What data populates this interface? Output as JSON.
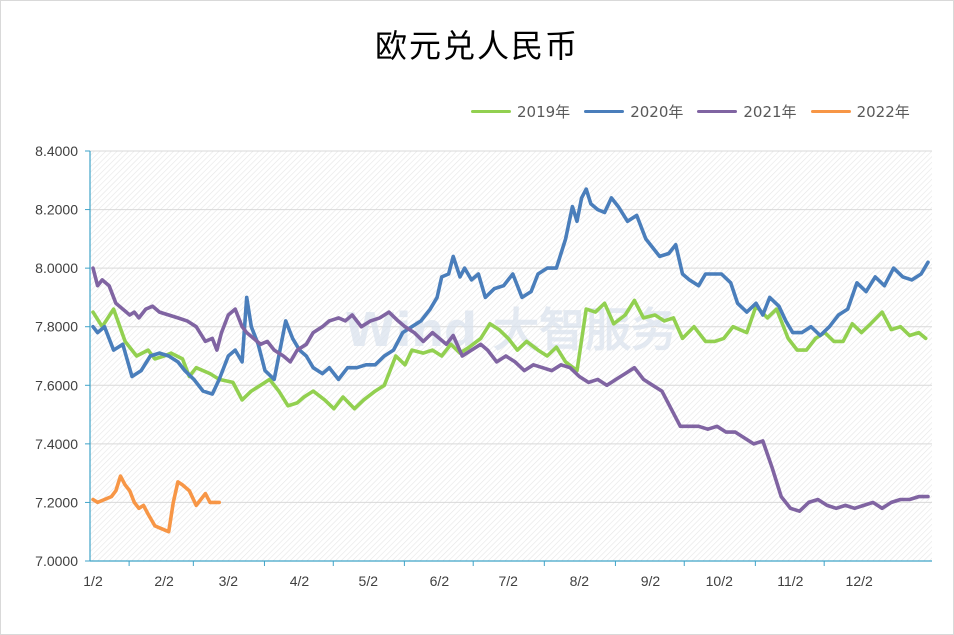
{
  "chart_data": {
    "type": "line",
    "title": "欧元兑人民币",
    "xlabel": "",
    "ylabel": "",
    "ylim": [
      7.0,
      8.4
    ],
    "yticks": [
      "7.0000",
      "7.2000",
      "7.4000",
      "7.6000",
      "7.8000",
      "8.0000",
      "8.2000",
      "8.4000"
    ],
    "xticks": [
      "1/2",
      "2/2",
      "3/2",
      "4/2",
      "5/2",
      "6/2",
      "7/2",
      "8/2",
      "9/2",
      "10/2",
      "11/2",
      "12/2"
    ],
    "x_unit": "day_of_year",
    "x_range": [
      1,
      365
    ],
    "grid": true,
    "legend_position": "top-right",
    "watermark": "Wind 大智服务",
    "series": [
      {
        "name": "2019年",
        "color": "#92d050",
        "x": [
          1,
          5,
          10,
          15,
          20,
          25,
          28,
          32,
          35,
          40,
          43,
          46,
          52,
          56,
          62,
          66,
          70,
          74,
          78,
          82,
          86,
          90,
          93,
          97,
          102,
          106,
          110,
          115,
          119,
          124,
          128,
          133,
          137,
          140,
          145,
          149,
          153,
          157,
          161,
          165,
          170,
          174,
          178,
          182,
          186,
          190,
          195,
          199,
          203,
          207,
          212,
          216,
          220,
          224,
          228,
          233,
          237,
          241,
          246,
          250,
          254,
          258,
          263,
          268,
          272,
          276,
          280,
          286,
          290,
          295,
          299,
          304,
          308,
          312,
          316,
          320,
          324,
          328,
          332,
          336,
          340,
          345,
          349,
          353,
          357,
          361,
          364
        ],
        "values": [
          7.85,
          7.8,
          7.86,
          7.75,
          7.7,
          7.72,
          7.69,
          7.7,
          7.71,
          7.69,
          7.63,
          7.66,
          7.64,
          7.62,
          7.61,
          7.55,
          7.58,
          7.6,
          7.62,
          7.58,
          7.53,
          7.54,
          7.56,
          7.58,
          7.55,
          7.52,
          7.56,
          7.52,
          7.55,
          7.58,
          7.6,
          7.7,
          7.67,
          7.72,
          7.71,
          7.72,
          7.7,
          7.74,
          7.71,
          7.73,
          7.76,
          7.81,
          7.79,
          7.76,
          7.72,
          7.75,
          7.72,
          7.7,
          7.73,
          7.68,
          7.65,
          7.86,
          7.85,
          7.88,
          7.81,
          7.84,
          7.89,
          7.83,
          7.84,
          7.82,
          7.83,
          7.76,
          7.8,
          7.75,
          7.75,
          7.76,
          7.8,
          7.78,
          7.87,
          7.83,
          7.86,
          7.76,
          7.72,
          7.72,
          7.76,
          7.78,
          7.75,
          7.75,
          7.81,
          7.78,
          7.81,
          7.85,
          7.79,
          7.8,
          7.77,
          7.78,
          7.76
        ]
      },
      {
        "name": "2020年",
        "color": "#4a7ebb",
        "x": [
          1,
          3,
          6,
          10,
          14,
          18,
          22,
          26,
          30,
          34,
          38,
          41,
          45,
          49,
          53,
          56,
          60,
          63,
          66,
          68,
          70,
          73,
          76,
          80,
          82,
          85,
          88,
          91,
          94,
          97,
          101,
          104,
          108,
          112,
          116,
          120,
          124,
          128,
          132,
          136,
          140,
          144,
          148,
          151,
          153,
          156,
          158,
          161,
          163,
          166,
          169,
          172,
          176,
          180,
          184,
          188,
          192,
          195,
          199,
          203,
          207,
          210,
          212,
          214,
          216,
          218,
          221,
          224,
          227,
          230,
          234,
          238,
          242,
          245,
          248,
          252,
          255,
          258,
          261,
          265,
          268,
          271,
          275,
          279,
          282,
          286,
          290,
          293,
          296,
          300,
          303,
          306,
          310,
          314,
          318,
          322,
          326,
          330,
          334,
          338,
          342,
          346,
          350,
          354,
          358,
          362,
          365
        ],
        "values": [
          7.8,
          7.78,
          7.8,
          7.72,
          7.74,
          7.63,
          7.65,
          7.7,
          7.71,
          7.7,
          7.68,
          7.65,
          7.62,
          7.58,
          7.57,
          7.62,
          7.7,
          7.72,
          7.68,
          7.9,
          7.8,
          7.74,
          7.65,
          7.62,
          7.7,
          7.82,
          7.76,
          7.72,
          7.7,
          7.66,
          7.64,
          7.66,
          7.62,
          7.66,
          7.66,
          7.67,
          7.67,
          7.7,
          7.72,
          7.78,
          7.8,
          7.82,
          7.86,
          7.9,
          7.97,
          7.98,
          8.04,
          7.97,
          8.0,
          7.96,
          7.98,
          7.9,
          7.93,
          7.94,
          7.98,
          7.9,
          7.92,
          7.98,
          8.0,
          8.0,
          8.1,
          8.21,
          8.16,
          8.24,
          8.27,
          8.22,
          8.2,
          8.19,
          8.24,
          8.21,
          8.16,
          8.18,
          8.1,
          8.07,
          8.04,
          8.05,
          8.08,
          7.98,
          7.96,
          7.94,
          7.98,
          7.98,
          7.98,
          7.95,
          7.88,
          7.85,
          7.88,
          7.84,
          7.9,
          7.87,
          7.82,
          7.78,
          7.78,
          7.8,
          7.77,
          7.8,
          7.84,
          7.86,
          7.95,
          7.92,
          7.97,
          7.94,
          8.0,
          7.97,
          7.96,
          7.98,
          8.02
        ]
      },
      {
        "name": "2021年",
        "color": "#8064a2",
        "x": [
          1,
          3,
          5,
          8,
          11,
          14,
          17,
          19,
          21,
          24,
          27,
          30,
          34,
          38,
          42,
          46,
          50,
          53,
          55,
          57,
          60,
          63,
          66,
          68,
          71,
          74,
          77,
          80,
          84,
          87,
          90,
          94,
          97,
          101,
          104,
          108,
          111,
          114,
          118,
          122,
          126,
          130,
          134,
          137,
          141,
          145,
          149,
          152,
          155,
          158,
          162,
          166,
          170,
          173,
          177,
          181,
          185,
          189,
          193,
          197,
          201,
          205,
          209,
          213,
          217,
          221,
          225,
          229,
          233,
          237,
          241,
          245,
          249,
          253,
          257,
          261,
          265,
          269,
          273,
          277,
          281,
          285,
          289,
          293,
          297,
          301,
          305,
          309,
          313,
          317,
          321,
          325,
          329,
          333,
          337,
          341,
          345,
          349,
          353,
          357,
          361,
          365
        ],
        "values": [
          8.0,
          7.94,
          7.96,
          7.94,
          7.88,
          7.86,
          7.84,
          7.85,
          7.83,
          7.86,
          7.87,
          7.85,
          7.84,
          7.83,
          7.82,
          7.8,
          7.75,
          7.76,
          7.72,
          7.78,
          7.84,
          7.86,
          7.8,
          7.78,
          7.76,
          7.74,
          7.75,
          7.72,
          7.7,
          7.68,
          7.72,
          7.74,
          7.78,
          7.8,
          7.82,
          7.83,
          7.82,
          7.84,
          7.8,
          7.82,
          7.83,
          7.85,
          7.82,
          7.8,
          7.78,
          7.75,
          7.78,
          7.76,
          7.74,
          7.77,
          7.7,
          7.72,
          7.74,
          7.72,
          7.68,
          7.7,
          7.68,
          7.65,
          7.67,
          7.66,
          7.65,
          7.67,
          7.66,
          7.63,
          7.61,
          7.62,
          7.6,
          7.62,
          7.64,
          7.66,
          7.62,
          7.6,
          7.58,
          7.52,
          7.46,
          7.46,
          7.46,
          7.45,
          7.46,
          7.44,
          7.44,
          7.42,
          7.4,
          7.41,
          7.32,
          7.22,
          7.18,
          7.17,
          7.2,
          7.21,
          7.19,
          7.18,
          7.19,
          7.18,
          7.19,
          7.2,
          7.18,
          7.2,
          7.21,
          7.21,
          7.22,
          7.22
        ]
      },
      {
        "name": "2022年",
        "color": "#f79646",
        "x": [
          1,
          3,
          6,
          9,
          11,
          13,
          15,
          17,
          19,
          21,
          23,
          25,
          28,
          31,
          34,
          36,
          38,
          40,
          43,
          46,
          48,
          50,
          52,
          54,
          56
        ],
        "values": [
          7.21,
          7.2,
          7.21,
          7.22,
          7.24,
          7.29,
          7.26,
          7.24,
          7.2,
          7.18,
          7.19,
          7.16,
          7.12,
          7.11,
          7.1,
          7.2,
          7.27,
          7.26,
          7.24,
          7.19,
          7.21,
          7.23,
          7.2,
          7.2,
          7.2
        ]
      }
    ]
  }
}
